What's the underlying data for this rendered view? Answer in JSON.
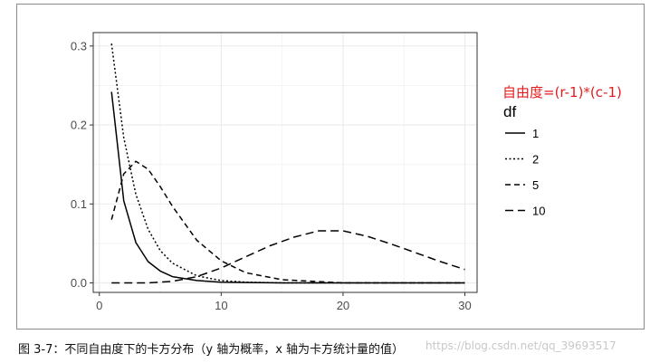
{
  "chart_data": {
    "type": "line",
    "title": "",
    "xlabel": "",
    "ylabel": "",
    "xlim": [
      -0.5,
      31
    ],
    "ylim": [
      -0.012,
      0.317
    ],
    "x_ticks": [
      0,
      10,
      20,
      30
    ],
    "y_ticks": [
      0.0,
      0.1,
      0.2,
      0.3
    ],
    "x_tick_labels": [
      "0",
      "10",
      "20",
      "30"
    ],
    "y_tick_labels": [
      "0.0",
      "0.1",
      "0.2",
      "0.3"
    ],
    "grid": true,
    "legend_position": "right",
    "legend_title": "df",
    "series": [
      {
        "name": "1",
        "dash": "solid",
        "x": [
          1,
          2,
          3,
          4,
          5,
          6,
          8,
          10,
          15,
          20,
          25,
          30
        ],
        "y": [
          0.242,
          0.104,
          0.051,
          0.027,
          0.015,
          0.008,
          0.003,
          0.001,
          0.0,
          0.0,
          0.0,
          0.0
        ]
      },
      {
        "name": "2",
        "dash": "dotted",
        "x": [
          1,
          2,
          3,
          4,
          5,
          6,
          8,
          10,
          12,
          15,
          20,
          25,
          30
        ],
        "y": [
          0.303,
          0.184,
          0.112,
          0.068,
          0.041,
          0.025,
          0.009,
          0.003,
          0.001,
          0.0,
          0.0,
          0.0,
          0.0
        ]
      },
      {
        "name": "5",
        "dash": "dashed",
        "x": [
          1,
          2,
          3,
          4,
          5,
          6,
          8,
          10,
          12,
          15,
          20,
          25,
          30
        ],
        "y": [
          0.08,
          0.138,
          0.154,
          0.144,
          0.122,
          0.097,
          0.054,
          0.028,
          0.013,
          0.004,
          0.0,
          0.0,
          0.0
        ]
      },
      {
        "name": "10",
        "dash": "longdash",
        "x": [
          1,
          4,
          6,
          8,
          10,
          12,
          14,
          16,
          18,
          20,
          22,
          24,
          26,
          28,
          30
        ],
        "y": [
          0.0,
          0.0,
          0.002,
          0.008,
          0.019,
          0.033,
          0.047,
          0.058,
          0.066,
          0.066,
          0.059,
          0.049,
          0.038,
          0.027,
          0.017
        ]
      }
    ]
  },
  "annotation": "自由度=(r-1)*(c-1)",
  "caption": "图 3-7：不同自由度下的卡方分布（y 轴为概率，x 轴为卡方统计量的值）",
  "watermark": "https://blog.csdn.net/qq_39693517",
  "colors": {
    "line": "#000000",
    "grid": "#ebebeb",
    "panel_border": "#333333",
    "annotation": "#e41a1c"
  }
}
